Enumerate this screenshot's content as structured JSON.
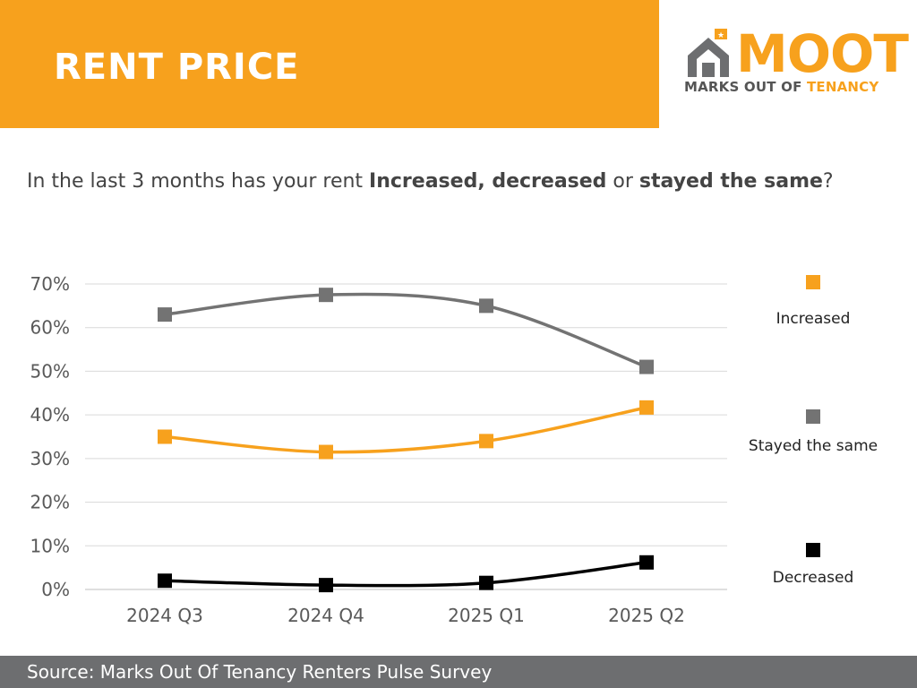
{
  "header": {
    "title": "RENT PRICE"
  },
  "logo": {
    "word": "MOOT",
    "tag_prefix": "MARKS OUT OF ",
    "tag_accent": "TENANCY"
  },
  "question": {
    "part1": "In the last 3 months has your rent ",
    "bold1": "Increased, decreased",
    "part2": " or ",
    "bold2": "stayed the same",
    "part3": "?"
  },
  "footer": {
    "source": "Source: Marks Out Of Tenancy Renters Pulse Survey"
  },
  "colors": {
    "accent": "#f7a11d",
    "stayed": "#737373",
    "decreased": "#000000",
    "footer": "#6d6e70"
  },
  "chart_data": {
    "type": "line",
    "categories": [
      "2024 Q3",
      "2024 Q4",
      "2025 Q1",
      "2025 Q2"
    ],
    "ylim": [
      0,
      70
    ],
    "yticks": [
      "0%",
      "10%",
      "20%",
      "30%",
      "40%",
      "50%",
      "60%",
      "70%"
    ],
    "grid": true,
    "legend_position": "right",
    "series": [
      {
        "name": "Increased",
        "values": [
          35,
          31.5,
          34,
          41.7
        ],
        "color": "#f7a11d"
      },
      {
        "name": "Stayed the same",
        "values": [
          63,
          67.5,
          65,
          51
        ],
        "color": "#737373"
      },
      {
        "name": "Decreased",
        "values": [
          2,
          1,
          1.5,
          6.2
        ],
        "color": "#000000"
      }
    ]
  }
}
